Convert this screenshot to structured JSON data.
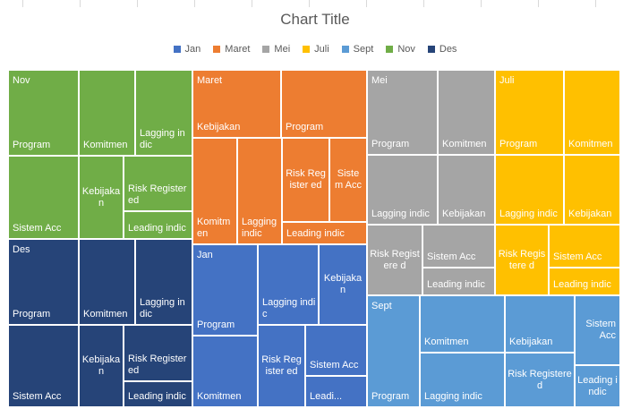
{
  "chart_data": {
    "type": "treemap",
    "title": "Chart Title",
    "legend_position": "top",
    "series": [
      {
        "name": "Jan",
        "color": "#4472c4"
      },
      {
        "name": "Maret",
        "color": "#ed7d31"
      },
      {
        "name": "Mei",
        "color": "#a5a5a5"
      },
      {
        "name": "Juli",
        "color": "#ffc000"
      },
      {
        "name": "Sept",
        "color": "#5b9bd5"
      },
      {
        "name": "Nov",
        "color": "#70ad47"
      },
      {
        "name": "Des",
        "color": "#264478"
      }
    ],
    "groups": [
      {
        "name": "Nov",
        "color": "#70ad47",
        "items": [
          "Program",
          "Komitmen",
          "Lagging indic",
          "Sistem Acc",
          "Kebijakan",
          "Risk Registered",
          "Leading indic"
        ]
      },
      {
        "name": "Des",
        "color": "#264478",
        "items": [
          "Program",
          "Komitmen",
          "Lagging indic",
          "Sistem Acc",
          "Kebijakan",
          "Risk Registered",
          "Leading indic"
        ]
      },
      {
        "name": "Maret",
        "color": "#ed7d31",
        "items": [
          "Kebijakan",
          "Program",
          "Komitmen",
          "Lagging indic",
          "Risk Registered",
          "Sistem Acc",
          "Leading indic"
        ]
      },
      {
        "name": "Jan",
        "color": "#4472c4",
        "items": [
          "Program",
          "Lagging indic",
          "Kebijakan",
          "Komitmen",
          "Risk Registered",
          "Sistem Acc",
          "Leading indic"
        ]
      },
      {
        "name": "Mei",
        "color": "#a5a5a5",
        "items": [
          "Program",
          "Komitmen",
          "Lagging indic",
          "Kebijakan",
          "Risk Registered",
          "Sistem Acc",
          "Leading indic"
        ]
      },
      {
        "name": "Juli",
        "color": "#ffc000",
        "items": [
          "Program",
          "Komitmen",
          "Lagging indic",
          "Kebijakan",
          "Risk Registered",
          "Sistem Acc",
          "Leading indic"
        ]
      },
      {
        "name": "Sept",
        "color": "#5b9bd5",
        "items": [
          "Program",
          "Komitmen",
          "Kebijakan",
          "Sistem Acc",
          "Lagging indic",
          "Risk Registered",
          "Leading indic"
        ]
      }
    ],
    "cell_labels": {
      "Nov": [
        "Program",
        "Komitmen",
        "Lagging indic",
        "Sistem Acc",
        "Kebijaka n",
        "Risk Registered",
        "Leading indic"
      ],
      "Des": [
        "Program",
        "Komitmen",
        "Lagging indic",
        "Sistem Acc",
        "Kebijaka n",
        "Risk Registered",
        "Leading indic"
      ],
      "Maret": [
        "Kebijakan",
        "Program",
        "Komitm en",
        "Lagging indic",
        "Risk Register ed",
        "Siste m Acc",
        "Leading indic"
      ],
      "Jan": [
        "Program",
        "Lagging indic",
        "Kebijaka n",
        "Komitmen",
        "Risk Register ed",
        "Sistem Acc",
        "Leadi..."
      ],
      "Mei": [
        "Program",
        "Komitmen",
        "Lagging indic",
        "Kebijakan",
        "Risk Registere d",
        "Sistem Acc",
        "Leading indic"
      ],
      "Juli": [
        "Program",
        "Komitmen",
        "Lagging indic",
        "Kebijakan",
        "Risk Registere d",
        "Sistem Acc",
        "Leading indic"
      ],
      "Sept": [
        "Program",
        "Komitmen",
        "Kebijakan",
        "Sistem Acc",
        "Lagging indic",
        "Risk Registered",
        "Leading indic"
      ]
    }
  }
}
